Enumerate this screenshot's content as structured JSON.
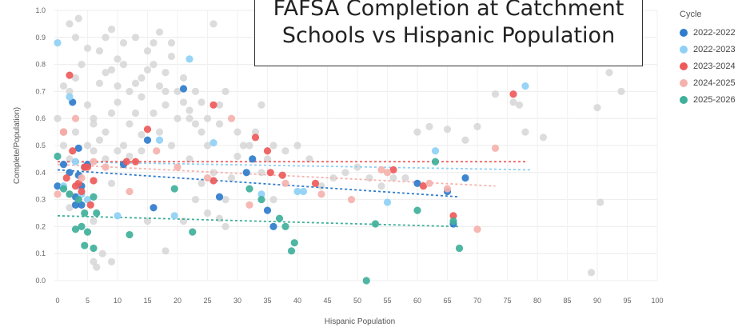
{
  "chart_data": {
    "type": "scatter",
    "title": "FAFSA Completion at Catchment Schools vs Hispanic Population",
    "xlabel": "Hispanic Population",
    "ylabel": "Complete/Population)",
    "xlim": [
      0,
      100
    ],
    "ylim": [
      0,
      1.0
    ],
    "x_ticks": [
      "0",
      "5",
      "10",
      "15",
      "20",
      "25",
      "30",
      "35",
      "40",
      "45",
      "50",
      "55",
      "60",
      "65",
      "70",
      "75",
      "80",
      "85",
      "90",
      "95",
      "100"
    ],
    "y_ticks": [
      "0.0",
      "0.1",
      "0.2",
      "0.3",
      "0.4",
      "0.5",
      "0.6",
      "0.7",
      "0.8",
      "0.9",
      "1.0"
    ],
    "grid": true,
    "legend_title": "Cycle",
    "legend_position": "right",
    "background_color": "#d6d6d6",
    "series": [
      {
        "name": "2022-2022",
        "color": "#2f7ccc",
        "points": [
          [
            0,
            0.35
          ],
          [
            1,
            0.43
          ],
          [
            2,
            0.4
          ],
          [
            2.5,
            0.66
          ],
          [
            3,
            0.31
          ],
          [
            3,
            0.28
          ],
          [
            3.5,
            0.49
          ],
          [
            3.5,
            0.39
          ],
          [
            4,
            0.28
          ],
          [
            4,
            0.35
          ],
          [
            4.5,
            0.42
          ],
          [
            5,
            0.43
          ],
          [
            11,
            0.43
          ],
          [
            15,
            0.52
          ],
          [
            16,
            0.27
          ],
          [
            21,
            0.71
          ],
          [
            27,
            0.31
          ],
          [
            31.5,
            0.4
          ],
          [
            35,
            0.26
          ],
          [
            36,
            0.2
          ],
          [
            60,
            0.36
          ],
          [
            65,
            0.33
          ],
          [
            68,
            0.38
          ],
          [
            66,
            0.21
          ],
          [
            32.5,
            0.45
          ]
        ],
        "trend": [
          [
            0,
            0.41
          ],
          [
            67,
            0.31
          ]
        ]
      },
      {
        "name": "2022-2023",
        "color": "#8fd0f5",
        "points": [
          [
            0,
            0.88
          ],
          [
            1,
            0.35
          ],
          [
            2,
            0.68
          ],
          [
            3,
            0.44
          ],
          [
            4,
            0.32
          ],
          [
            5,
            0.3
          ],
          [
            10,
            0.24
          ],
          [
            17,
            0.52
          ],
          [
            19.5,
            0.24
          ],
          [
            22,
            0.82
          ],
          [
            26,
            0.51
          ],
          [
            34,
            0.32
          ],
          [
            40,
            0.33
          ],
          [
            41,
            0.33
          ],
          [
            55,
            0.29
          ],
          [
            63,
            0.48
          ],
          [
            78,
            0.72
          ]
        ],
        "trend": [
          [
            0,
            0.44
          ],
          [
            79,
            0.41
          ]
        ]
      },
      {
        "name": "2023-2024",
        "color": "#ee5a5a",
        "points": [
          [
            1,
            0.55
          ],
          [
            1.5,
            0.38
          ],
          [
            2,
            0.76
          ],
          [
            2.5,
            0.48
          ],
          [
            3,
            0.35
          ],
          [
            3.5,
            0.36
          ],
          [
            4,
            0.33
          ],
          [
            4.5,
            0.42
          ],
          [
            5,
            0.42
          ],
          [
            5.5,
            0.28
          ],
          [
            6,
            0.37
          ],
          [
            11.5,
            0.44
          ],
          [
            13,
            0.44
          ],
          [
            15,
            0.56
          ],
          [
            26,
            0.65
          ],
          [
            26,
            0.37
          ],
          [
            33,
            0.53
          ],
          [
            35,
            0.48
          ],
          [
            35.5,
            0.4
          ],
          [
            37.5,
            0.39
          ],
          [
            43,
            0.36
          ],
          [
            56,
            0.41
          ],
          [
            61,
            0.35
          ],
          [
            66,
            0.24
          ],
          [
            76,
            0.69
          ]
        ],
        "trend": [
          [
            0,
            0.44
          ],
          [
            78,
            0.44
          ]
        ]
      },
      {
        "name": "2024-2025",
        "color": "#f5b2ad",
        "points": [
          [
            0,
            0.32
          ],
          [
            1,
            0.55
          ],
          [
            2,
            0.32
          ],
          [
            3,
            0.6
          ],
          [
            4,
            0.38
          ],
          [
            6,
            0.44
          ],
          [
            8,
            0.42
          ],
          [
            12,
            0.33
          ],
          [
            16.5,
            0.48
          ],
          [
            20,
            0.42
          ],
          [
            25,
            0.38
          ],
          [
            29,
            0.6
          ],
          [
            32,
            0.28
          ],
          [
            38,
            0.36
          ],
          [
            44,
            0.32
          ],
          [
            49,
            0.3
          ],
          [
            54,
            0.41
          ],
          [
            55,
            0.4
          ],
          [
            62,
            0.36
          ],
          [
            65,
            0.34
          ],
          [
            70,
            0.19
          ],
          [
            73,
            0.49
          ]
        ],
        "trend": [
          [
            0,
            0.43
          ],
          [
            73,
            0.35
          ]
        ]
      },
      {
        "name": "2025-2026",
        "color": "#3fb09a",
        "points": [
          [
            0,
            0.46
          ],
          [
            1,
            0.34
          ],
          [
            2,
            0.32
          ],
          [
            3,
            0.19
          ],
          [
            3.5,
            0.3
          ],
          [
            4,
            0.2
          ],
          [
            4.5,
            0.13
          ],
          [
            4.5,
            0.25
          ],
          [
            5,
            0.18
          ],
          [
            6,
            0.12
          ],
          [
            6,
            0.31
          ],
          [
            6.5,
            0.25
          ],
          [
            12,
            0.17
          ],
          [
            19.5,
            0.34
          ],
          [
            22.5,
            0.18
          ],
          [
            32,
            0.34
          ],
          [
            34,
            0.3
          ],
          [
            37,
            0.23
          ],
          [
            38,
            0.2
          ],
          [
            39,
            0.11
          ],
          [
            39.5,
            0.14
          ],
          [
            51.5,
            0.0
          ],
          [
            53,
            0.21
          ],
          [
            60,
            0.26
          ],
          [
            63,
            0.44
          ],
          [
            67,
            0.12
          ],
          [
            66,
            0.22
          ]
        ],
        "trend": [
          [
            0,
            0.24
          ],
          [
            67,
            0.2
          ]
        ]
      }
    ],
    "background_points": [
      [
        1,
        0.72
      ],
      [
        2,
        0.7
      ],
      [
        3,
        0.75
      ],
      [
        4,
        0.8
      ],
      [
        5,
        0.65
      ],
      [
        6,
        0.6
      ],
      [
        7,
        0.85
      ],
      [
        8,
        0.9
      ],
      [
        9,
        0.78
      ],
      [
        10,
        0.82
      ],
      [
        11,
        0.88
      ],
      [
        12,
        0.7
      ],
      [
        13,
        0.9
      ],
      [
        14,
        0.75
      ],
      [
        15,
        0.85
      ],
      [
        16,
        0.8
      ],
      [
        17,
        0.72
      ],
      [
        18,
        0.7
      ],
      [
        19,
        0.88
      ],
      [
        20,
        0.6
      ],
      [
        2,
        0.95
      ],
      [
        3,
        0.9
      ],
      [
        3.5,
        0.97
      ],
      [
        5,
        0.86
      ],
      [
        6,
        0.58
      ],
      [
        7,
        0.52
      ],
      [
        8,
        0.55
      ],
      [
        9,
        0.62
      ],
      [
        10,
        0.66
      ],
      [
        11,
        0.5
      ],
      [
        12,
        0.58
      ],
      [
        13,
        0.62
      ],
      [
        14,
        0.54
      ],
      [
        16,
        0.62
      ],
      [
        18,
        0.65
      ],
      [
        21,
        0.75
      ],
      [
        22,
        0.6
      ],
      [
        23,
        0.58
      ],
      [
        24,
        0.66
      ],
      [
        25,
        0.6
      ],
      [
        26,
        0.95
      ],
      [
        27,
        0.58
      ],
      [
        28,
        0.7
      ],
      [
        30,
        0.55
      ],
      [
        31,
        0.5
      ],
      [
        32,
        0.5
      ],
      [
        33,
        0.55
      ],
      [
        34,
        0.65
      ],
      [
        35,
        0.45
      ],
      [
        36,
        0.5
      ],
      [
        38,
        0.48
      ],
      [
        40,
        0.5
      ],
      [
        42,
        0.45
      ],
      [
        44,
        0.35
      ],
      [
        46,
        0.38
      ],
      [
        48,
        0.4
      ],
      [
        50,
        0.42
      ],
      [
        52,
        0.38
      ],
      [
        54,
        0.35
      ],
      [
        56,
        0.38
      ],
      [
        58,
        0.38
      ],
      [
        60,
        0.55
      ],
      [
        62,
        0.57
      ],
      [
        65,
        0.56
      ],
      [
        68,
        0.52
      ],
      [
        70,
        0.57
      ],
      [
        73,
        0.69
      ],
      [
        76,
        0.66
      ],
      [
        77,
        0.65
      ],
      [
        78,
        0.55
      ],
      [
        81,
        0.53
      ],
      [
        90,
        0.64
      ],
      [
        90.5,
        0.29
      ],
      [
        92,
        0.77
      ],
      [
        94,
        0.7
      ],
      [
        89,
        0.03
      ],
      [
        0,
        0.6
      ],
      [
        1,
        0.5
      ],
      [
        2,
        0.45
      ],
      [
        3,
        0.55
      ],
      [
        5,
        0.5
      ],
      [
        6,
        0.48
      ],
      [
        8,
        0.45
      ],
      [
        9,
        0.36
      ],
      [
        10,
        0.48
      ],
      [
        12,
        0.46
      ],
      [
        14,
        0.48
      ],
      [
        17,
        0.55
      ],
      [
        19,
        0.5
      ],
      [
        22,
        0.45
      ],
      [
        24,
        0.36
      ],
      [
        26,
        0.4
      ],
      [
        28,
        0.3
      ],
      [
        29,
        0.38
      ],
      [
        30,
        0.46
      ],
      [
        34,
        0.4
      ],
      [
        36,
        0.3
      ],
      [
        7,
        0.73
      ],
      [
        8,
        0.77
      ],
      [
        9,
        0.93
      ],
      [
        10,
        0.72
      ],
      [
        11,
        0.8
      ],
      [
        13,
        0.73
      ],
      [
        14,
        0.68
      ],
      [
        15,
        0.78
      ],
      [
        16,
        0.88
      ],
      [
        17,
        0.92
      ],
      [
        18,
        0.77
      ],
      [
        19,
        0.83
      ],
      [
        20,
        0.7
      ],
      [
        21,
        0.66
      ],
      [
        22,
        0.63
      ],
      [
        23,
        0.7
      ],
      [
        24,
        0.55
      ],
      [
        25,
        0.5
      ],
      [
        27,
        0.65
      ],
      [
        6,
        0.07
      ],
      [
        6.5,
        0.05
      ],
      [
        7.5,
        0.1
      ],
      [
        9,
        0.07
      ],
      [
        18,
        0.11
      ],
      [
        21,
        0.22
      ],
      [
        25,
        0.25
      ],
      [
        28,
        0.2
      ],
      [
        2,
        0.27
      ],
      [
        6,
        0.22
      ],
      [
        15,
        0.22
      ],
      [
        23,
        0.3
      ],
      [
        27,
        0.23
      ]
    ]
  }
}
